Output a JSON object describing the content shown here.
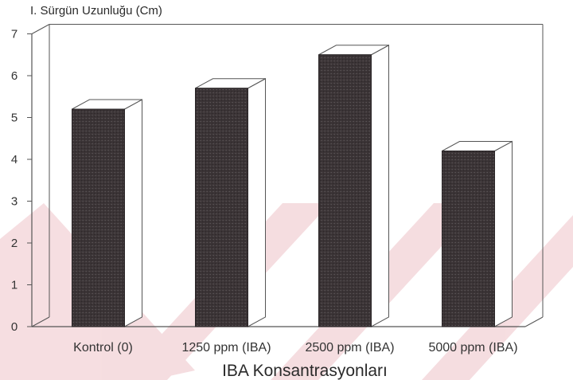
{
  "chart_data": {
    "type": "bar",
    "title": "I. Sürgün Uzunluğu (Cm)",
    "xlabel": "IBA Konsantrasyonları",
    "ylabel": "",
    "categories": [
      "Kontrol (0)",
      "1250 ppm (IBA)",
      "2500 ppm (IBA)",
      "5000 ppm (IBA)"
    ],
    "values": [
      5.2,
      5.7,
      6.5,
      4.2
    ],
    "ylim": [
      0,
      7
    ],
    "yticks": [
      "0",
      "1",
      "2",
      "3",
      "4",
      "5",
      "6",
      "7"
    ],
    "bar_style": "3d",
    "grid": false
  },
  "colors": {
    "bar_front": "#3b3436",
    "bar_side": "#ffffff",
    "outline": "#555555",
    "watermark": "#e8b9bf"
  }
}
